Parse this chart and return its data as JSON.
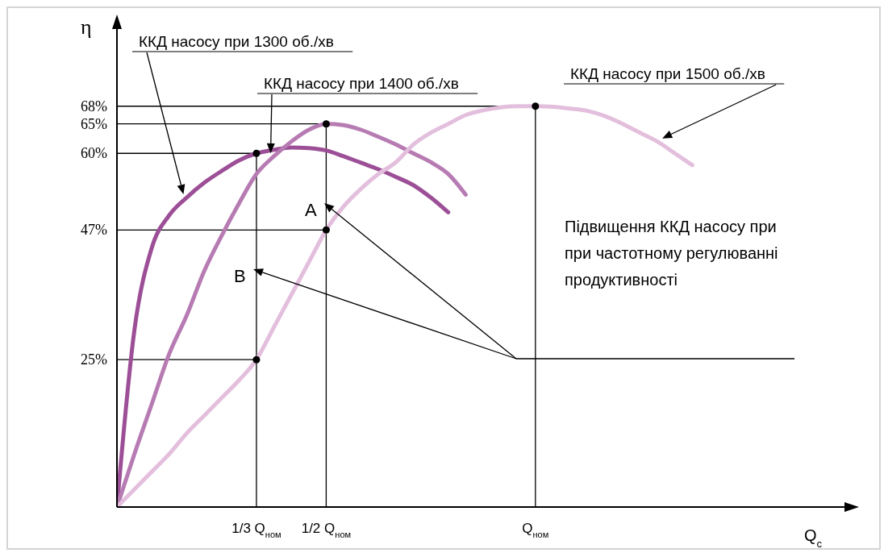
{
  "chart_data": {
    "type": "line",
    "xlabel": "Q$_{c}$",
    "ylabel": "η",
    "ylim": [
      0,
      80
    ],
    "categories": [
      null,
      null,
      null,
      null,
      null,
      null,
      null,
      null,
      "1/3 Q$_{ном}$",
      null,
      null,
      null,
      "1/2 Q$_{ном}$",
      null,
      null,
      null,
      null,
      null,
      null,
      null,
      null,
      null,
      null,
      null,
      "Q$_{ном}$",
      null,
      null,
      null,
      null,
      null,
      null,
      null,
      null,
      null,
      null,
      null,
      null,
      null,
      null,
      null,
      null
    ],
    "yticks": [
      {
        "value": 25,
        "label": "25%"
      },
      {
        "value": 47,
        "label": "47%"
      },
      {
        "value": 60,
        "label": "60%"
      },
      {
        "value": 65,
        "label": "65%"
      },
      {
        "value": 68,
        "label": "68%"
      }
    ],
    "grid": false,
    "legend": false,
    "marker": "none",
    "line_style": "solid",
    "series": [
      {
        "name": "ККД насосу при 1300 об./хв",
        "color": "#9c4f97",
        "values": [
          0,
          30,
          44,
          49.5,
          52.5,
          55,
          57,
          58.8,
          60,
          60.6,
          61,
          60.9,
          60.5,
          59.5,
          58.4,
          57.3,
          56,
          54.6,
          52.5,
          50,
          null,
          null,
          null,
          null,
          null,
          null,
          null,
          null,
          null,
          null,
          null,
          null,
          null,
          null,
          null,
          null,
          null,
          null,
          null,
          null,
          null
        ]
      },
      {
        "name": "ККД насосу при 1400 об./хв",
        "color": "#b77bb3",
        "values": [
          0,
          9,
          17.5,
          26,
          32.5,
          40,
          46,
          51.5,
          56.5,
          59.5,
          62,
          64,
          65,
          64.8,
          64,
          62.8,
          61.5,
          60,
          58.5,
          56.5,
          53,
          null,
          null,
          null,
          null,
          null,
          null,
          null,
          null,
          null,
          null,
          null,
          null,
          null,
          null,
          null,
          null,
          null,
          null,
          null,
          null
        ]
      },
      {
        "name": "ККД насосу при 1500 об./хв",
        "color": "#e3bfdd",
        "values": [
          0,
          3,
          6,
          9,
          12.5,
          15.5,
          18.5,
          21.5,
          25,
          30.5,
          36,
          41.5,
          47,
          51,
          54,
          56.5,
          58.5,
          61.5,
          63.5,
          65,
          66.5,
          67.3,
          67.8,
          68,
          68,
          67.9,
          67.6,
          67.2,
          66.3,
          65,
          63.5,
          62,
          60,
          58,
          null,
          null,
          null,
          null,
          null,
          null,
          null
        ]
      },
      {
        "type": "scatter",
        "marker": "circle",
        "color": "#000000",
        "values": [
          null,
          null,
          null,
          null,
          null,
          null,
          null,
          null,
          60,
          null,
          null,
          null,
          65,
          null,
          null,
          null,
          null,
          null,
          null,
          null,
          null,
          null,
          null,
          null,
          68,
          null,
          null,
          null,
          null,
          null,
          null,
          null,
          null,
          null,
          null,
          null,
          null,
          null,
          null,
          null,
          null
        ]
      },
      {
        "type": "scatter",
        "marker": "circle",
        "color": "#000000",
        "values": [
          null,
          null,
          null,
          null,
          null,
          null,
          null,
          null,
          25,
          null,
          null,
          null,
          47,
          null,
          null,
          null,
          null,
          null,
          null,
          null,
          null,
          null,
          null,
          null,
          null,
          null,
          null,
          null,
          null,
          null,
          null,
          null,
          null,
          null,
          null,
          null,
          null,
          null,
          null,
          null,
          null
        ]
      }
    ],
    "ref_lines": [
      {
        "axis": "y",
        "value": 68,
        "color": "#000000"
      },
      {
        "axis": "y",
        "value": 65,
        "color": "#000000"
      },
      {
        "axis": "y",
        "value": 60,
        "color": "#000000"
      },
      {
        "axis": "y",
        "value": 47,
        "color": "#000000"
      },
      {
        "axis": "y",
        "value": 25,
        "color": "#000000"
      },
      {
        "axis": "x",
        "value": "1/3 Q$_{ном}$",
        "color": "#000000"
      },
      {
        "axis": "x",
        "value": "1/2 Q$_{ном}$",
        "color": "#000000"
      },
      {
        "axis": "x",
        "value": "Q$_{ном}$",
        "color": "#000000"
      }
    ],
    "annotations": [
      "A",
      "B",
      "Підвищення ККД насосу при при частотному регулюванні продуктивності"
    ]
  }
}
